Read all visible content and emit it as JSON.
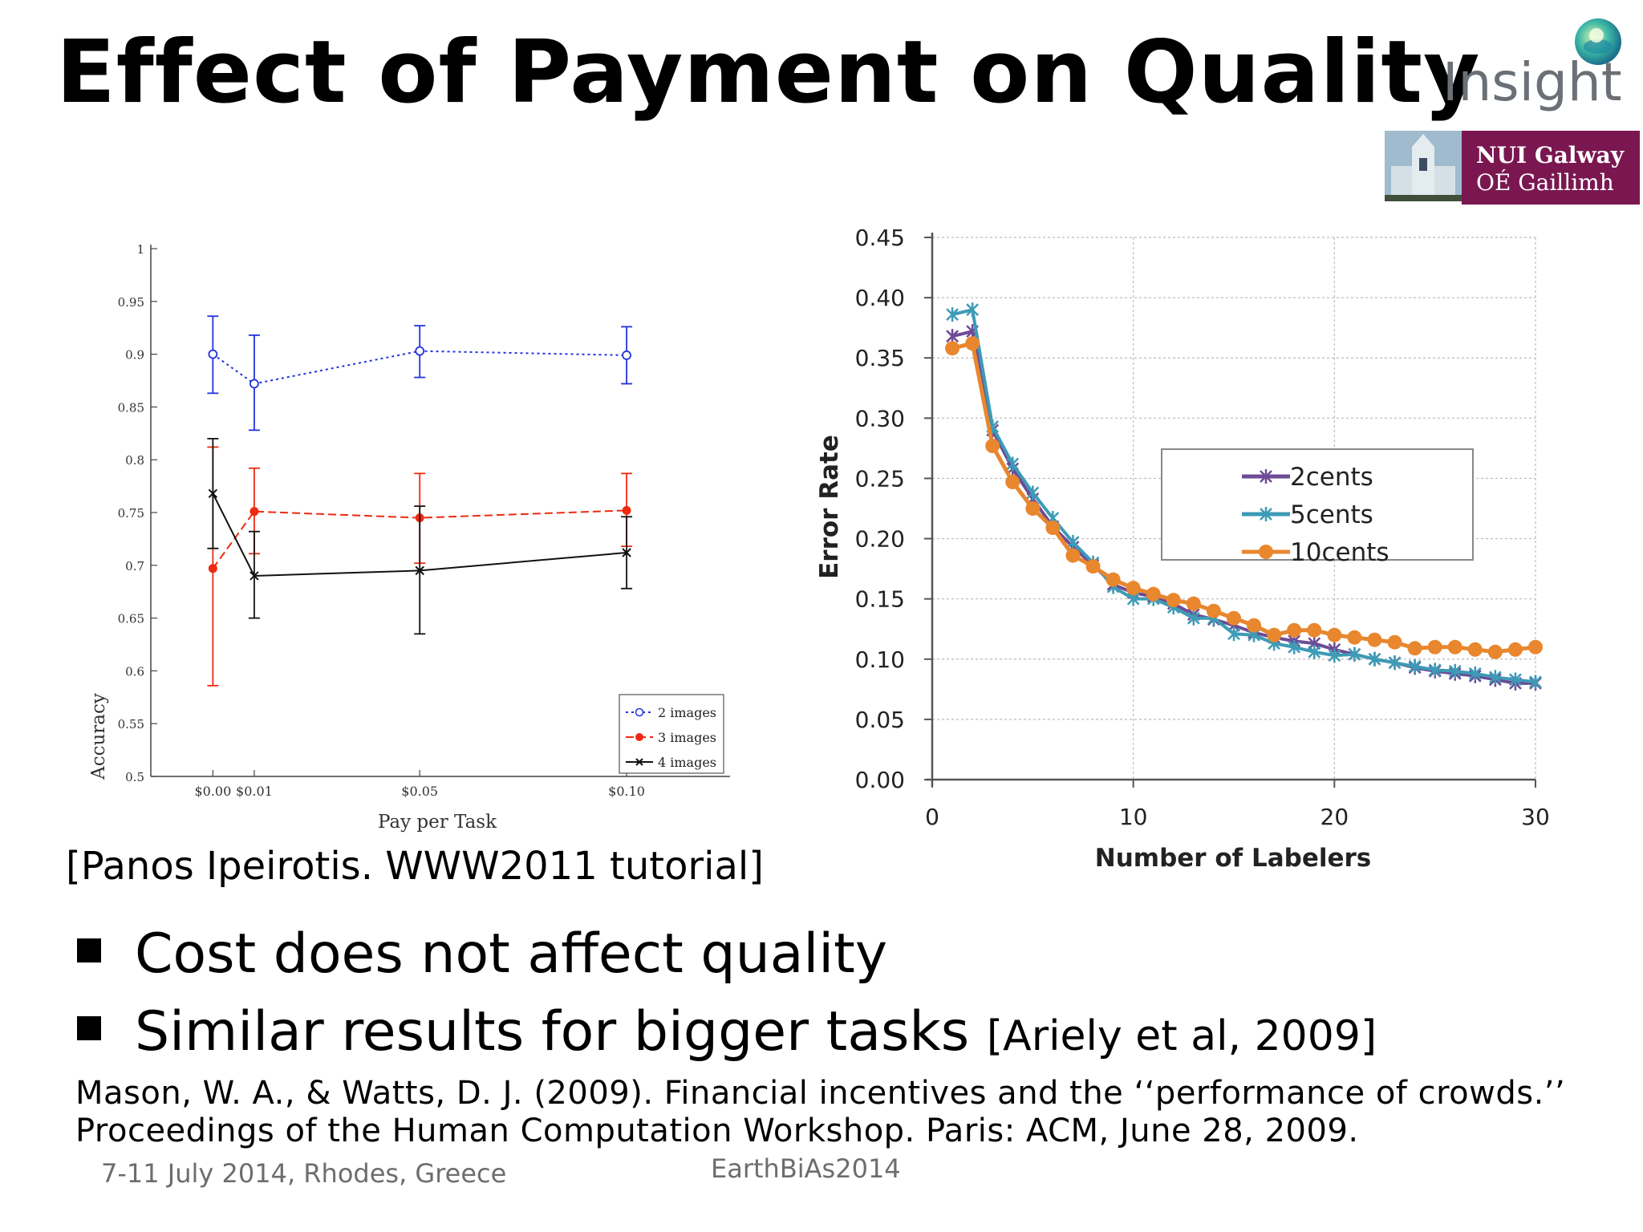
{
  "title": "Effect of Payment on Quality",
  "logos": {
    "insight": "Insight",
    "nui_line1": "NUI Galway",
    "nui_line2": "OÉ Gaillimh"
  },
  "colors": {
    "blue": "#2233dd",
    "red": "#ee2a10",
    "black": "#111111",
    "purple": "#6e4b96",
    "teal": "#3d9bb6",
    "orange": "#e8872e",
    "nui": "#7a1751"
  },
  "chart_data": [
    {
      "type": "line",
      "xlabel": "Pay per Task",
      "ylabel": "Accuracy",
      "categories": [
        "$0.00",
        "$0.01",
        "$0.05",
        "$0.10"
      ],
      "x": [
        0,
        0.01,
        0.05,
        0.1
      ],
      "ylim": [
        0.5,
        1
      ],
      "yticks": [
        "0.5",
        "0.55",
        "0.6",
        "0.65",
        "0.7",
        "0.75",
        "0.8",
        "0.85",
        "0.9",
        "0.95",
        "1"
      ],
      "legend_position": "bottom-right",
      "series": [
        {
          "name": "2 images",
          "values": [
            0.9,
            0.872,
            0.903,
            0.899
          ],
          "err_low": [
            0.863,
            0.828,
            0.878,
            0.872
          ],
          "err_high": [
            0.936,
            0.918,
            0.927,
            0.926
          ]
        },
        {
          "name": "3 images",
          "values": [
            0.697,
            0.751,
            0.745,
            0.752
          ],
          "err_low": [
            0.586,
            0.711,
            0.702,
            0.718
          ],
          "err_high": [
            0.812,
            0.792,
            0.787,
            0.787
          ]
        },
        {
          "name": "4 images",
          "values": [
            0.768,
            0.69,
            0.695,
            0.712
          ],
          "err_low": [
            0.716,
            0.65,
            0.635,
            0.678
          ],
          "err_high": [
            0.82,
            0.732,
            0.756,
            0.746
          ]
        }
      ]
    },
    {
      "type": "line",
      "xlabel": "Number of Labelers",
      "ylabel": "Error Rate",
      "xlim": [
        0,
        30
      ],
      "ylim": [
        0,
        0.45
      ],
      "xticks": [
        "0",
        "10",
        "20",
        "30"
      ],
      "yticks": [
        "0.00",
        "0.05",
        "0.10",
        "0.15",
        "0.20",
        "0.25",
        "0.30",
        "0.35",
        "0.40",
        "0.45"
      ],
      "grid": true,
      "legend_position": "center-right",
      "x": [
        1,
        2,
        3,
        4,
        5,
        6,
        7,
        8,
        9,
        10,
        11,
        12,
        13,
        14,
        15,
        16,
        17,
        18,
        19,
        20,
        21,
        22,
        23,
        24,
        25,
        26,
        27,
        28,
        29,
        30
      ],
      "series": [
        {
          "name": "2cents",
          "values": [
            0.368,
            0.372,
            0.29,
            0.258,
            0.233,
            0.21,
            0.193,
            0.178,
            0.162,
            0.155,
            0.152,
            0.146,
            0.137,
            0.133,
            0.128,
            0.122,
            0.118,
            0.115,
            0.113,
            0.108,
            0.104,
            0.1,
            0.097,
            0.093,
            0.09,
            0.088,
            0.086,
            0.083,
            0.08,
            0.08
          ]
        },
        {
          "name": "5cents",
          "values": [
            0.386,
            0.39,
            0.293,
            0.262,
            0.238,
            0.217,
            0.197,
            0.18,
            0.16,
            0.15,
            0.15,
            0.143,
            0.134,
            0.134,
            0.121,
            0.12,
            0.113,
            0.11,
            0.106,
            0.103,
            0.104,
            0.1,
            0.097,
            0.094,
            0.091,
            0.09,
            0.088,
            0.085,
            0.083,
            0.081
          ]
        },
        {
          "name": "10cents",
          "values": [
            0.358,
            0.362,
            0.277,
            0.247,
            0.225,
            0.209,
            0.186,
            0.177,
            0.166,
            0.159,
            0.154,
            0.149,
            0.146,
            0.14,
            0.134,
            0.128,
            0.12,
            0.124,
            0.124,
            0.12,
            0.118,
            0.116,
            0.114,
            0.109,
            0.11,
            0.11,
            0.108,
            0.106,
            0.108,
            0.11
          ]
        }
      ]
    }
  ],
  "citation": "[Panos Ipeirotis. WWW2011 tutorial]",
  "bullets": {
    "b1": "Cost does not affect quality",
    "b2": "Similar results for bigger tasks",
    "b2_ref": "[Ariely et al, 2009]"
  },
  "reference": {
    "line1": "Mason, W. A., & Watts, D. J. (2009). Financial incentives and the ‘‘performance of crowds.’’",
    "line2": "Proceedings of the Human Computation Workshop. Paris: ACM, June 28, 2009."
  },
  "footer": {
    "left": "7-11 July 2014, Rhodes, Greece",
    "center": "EarthBiAs2014"
  }
}
